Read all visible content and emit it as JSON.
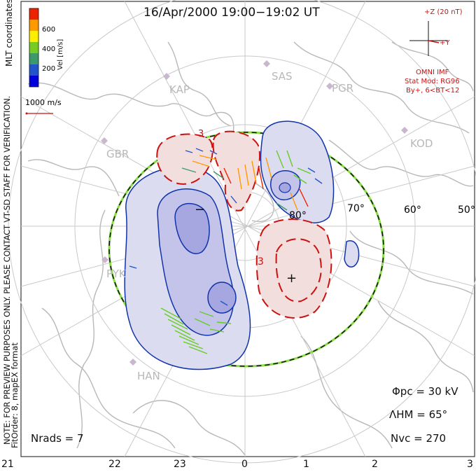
{
  "title": "16/Apr/2000 19:00−19:02 UT",
  "color_scale": {
    "label": "Vel [m/s]",
    "ticks": [
      "600",
      "400",
      "200"
    ],
    "colors": [
      "#0000dd",
      "#2255cc",
      "#3a9a6a",
      "#77cc22",
      "#ffee00",
      "#ff9900",
      "#ee2200"
    ]
  },
  "coord_label": "MLT coordinates",
  "note": "NOTE: FOR PREVIEW PURPOSES ONLY. PLEASE CONTACT VT-SD STAFF FOR VERIFICATION.",
  "fit_order": "FitOrder: 8, mapEX format",
  "scale_vector_label": "1000 m/s",
  "imf": {
    "z_label": "+Z (20 nT)",
    "y_label": "+Y",
    "source": "OMNI IMF",
    "stat_mod": "Stat Mod: RG96",
    "condition": "By+, 6<BT<12"
  },
  "stations": [
    "KAP",
    "SAS",
    "PGR",
    "GBR",
    "KOD",
    "PYK",
    "HAN"
  ],
  "latitude_labels": [
    "80°",
    "70°",
    "60°",
    "50°"
  ],
  "convection": {
    "min_symbol": "−",
    "max_symbol": "+",
    "contour_label_3": "3"
  },
  "stats": {
    "phi_pc": "Φpc = 30 kV",
    "lambda_hm": "ΛHM = 65°",
    "n_vc": "Nvc = 270",
    "n_rads": "Nrads = 7"
  },
  "mlt_axis": [
    "21",
    "22",
    "23",
    "0",
    "1",
    "2",
    "3"
  ]
}
